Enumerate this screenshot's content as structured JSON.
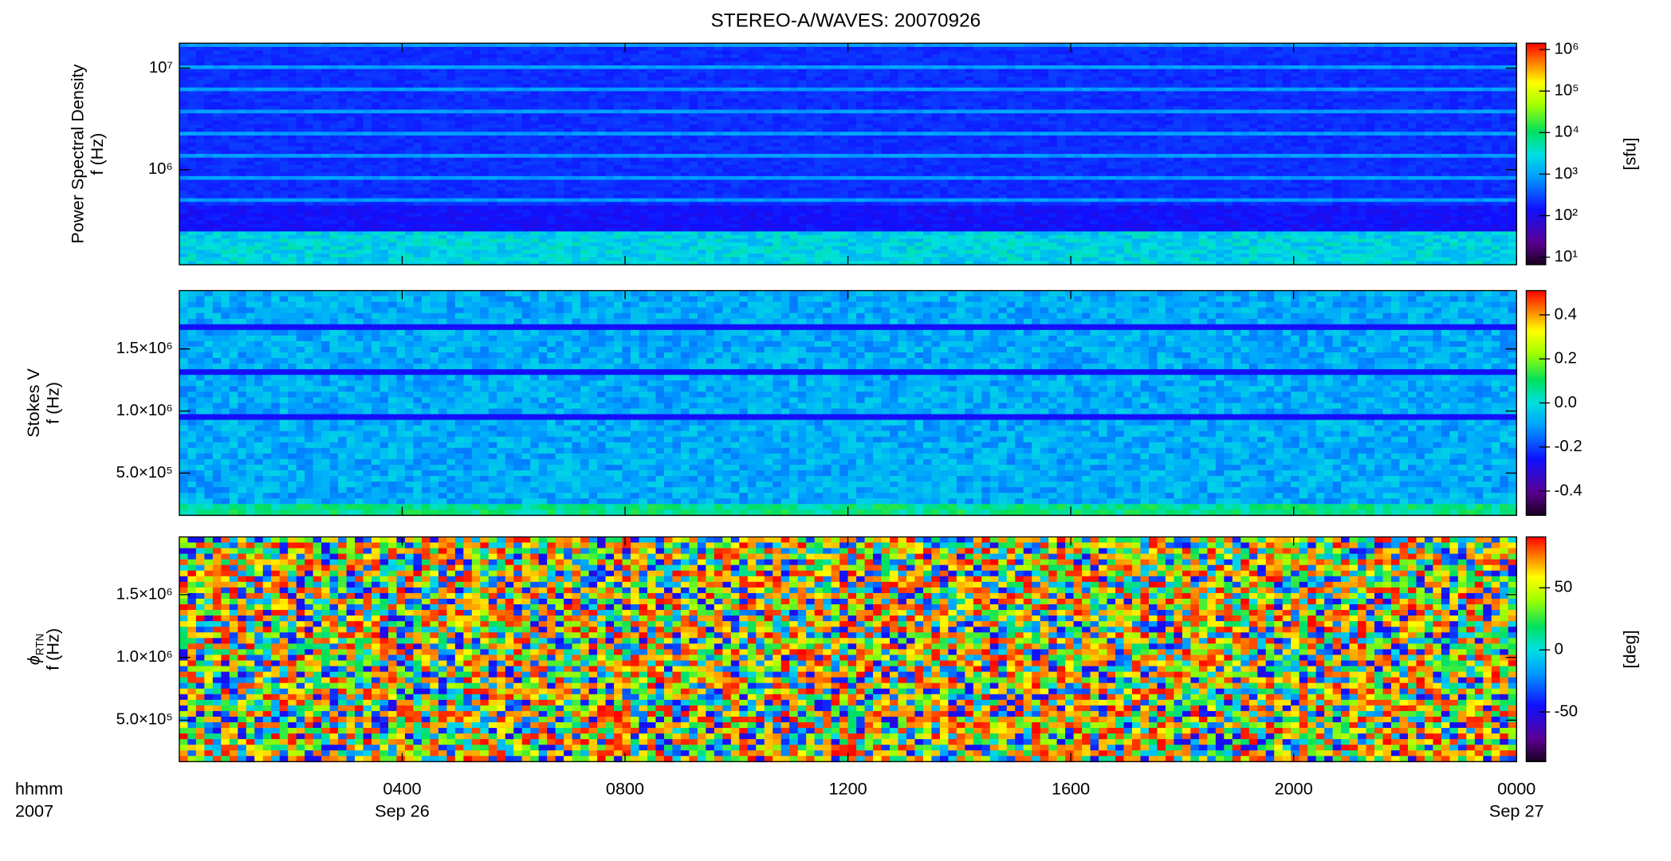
{
  "chart_data": [
    {
      "type": "spectrogram",
      "title": "STEREO-A/WAVES: 20070926",
      "ylabel": [
        "Power Spectral Density",
        "f (Hz)"
      ],
      "ylog": true,
      "ylim": [
        116000,
        17600000
      ],
      "yticks": [
        {
          "value": 1000000,
          "label": "10⁶"
        },
        {
          "value": 10000000,
          "label": "10⁷"
        }
      ],
      "colorbar_label": "[sfu]",
      "clog": true,
      "clim": [
        6.6,
        1420000
      ],
      "cticks": [
        {
          "value": 10,
          "label": "10¹"
        },
        {
          "value": 100,
          "label": "10²"
        },
        {
          "value": 1000,
          "label": "10³"
        },
        {
          "value": 10000,
          "label": "10⁴"
        },
        {
          "value": 100000,
          "label": "10⁵"
        },
        {
          "value": 1000000,
          "label": "10⁶"
        }
      ]
    },
    {
      "type": "spectrogram",
      "ylabel": [
        "Stokes V",
        "f (Hz)"
      ],
      "ylog": false,
      "ylim": [
        160000,
        1970000
      ],
      "yticks": [
        {
          "value": 500000,
          "label": "5.0×10⁵"
        },
        {
          "value": 1000000,
          "label": "1.0×10⁶"
        },
        {
          "value": 1500000,
          "label": "1.5×10⁶"
        }
      ],
      "clog": false,
      "clim": [
        -0.51,
        0.51
      ],
      "cticks": [
        -0.4,
        -0.2,
        {
          "value": 0,
          "label": "0.0"
        },
        0.2,
        0.4
      ]
    },
    {
      "type": "spectrogram",
      "ylabel_symbol": "ϕ",
      "ylabel_subscript": "RTN",
      "ylabel": [
        "f (Hz)"
      ],
      "ylog": false,
      "ylim": [
        170000,
        1960000
      ],
      "yticks": [
        {
          "value": 500000,
          "label": "5.0×10⁵"
        },
        {
          "value": 1000000,
          "label": "1.0×10⁶"
        },
        {
          "value": 1500000,
          "label": "1.5×10⁶"
        }
      ],
      "colorbar_label": "[deg]",
      "clog": false,
      "clim": [
        -90,
        91
      ],
      "cticks": [
        -50,
        0,
        50
      ],
      "xlabel": [
        "hhmm",
        "2007"
      ],
      "xlim": [
        0,
        24
      ],
      "xticks": [
        {
          "value": 4,
          "label": "0400"
        },
        {
          "value": 8,
          "label": "0800"
        },
        {
          "value": 12,
          "label": "1200"
        },
        {
          "value": 16,
          "label": "1600"
        },
        {
          "value": 20,
          "label": "2000"
        },
        {
          "value": 24,
          "label": "0000"
        }
      ],
      "date_labels": [
        {
          "value": 4,
          "label": "Sep 26"
        },
        {
          "value": 24,
          "label": "Sep 27"
        }
      ]
    }
  ]
}
